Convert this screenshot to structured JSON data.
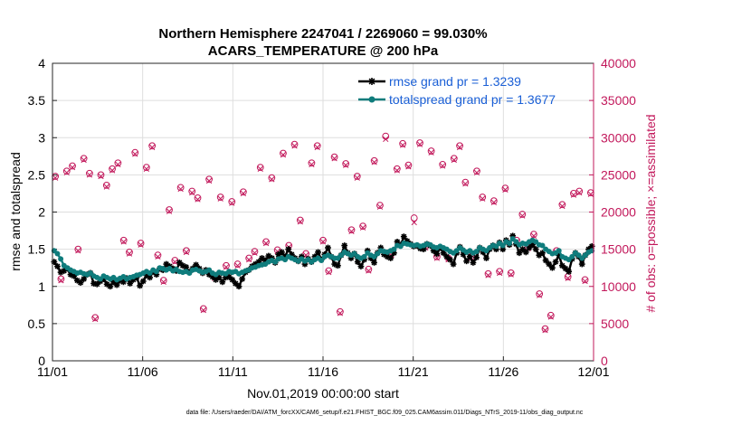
{
  "chart_data": {
    "type": "line",
    "title": "Northern Hemisphere 2247041 / 2269060 = 99.030%",
    "subtitle": "ACARS_TEMPERATURE @ 200 hPa",
    "xlabel": "Nov.01,2019 00:00:00 start",
    "ylabel": "rmse and totalspread",
    "ylabel_right": "# of obs: o=possible; ×=assimilated",
    "xlim": [
      0,
      30
    ],
    "ylim": [
      0,
      4
    ],
    "ylim_right": [
      0,
      40000
    ],
    "x_ticks": [
      0,
      5,
      10,
      15,
      20,
      25,
      30
    ],
    "x_tick_labels": [
      "11/01",
      "11/06",
      "11/11",
      "11/16",
      "11/21",
      "11/26",
      "12/01"
    ],
    "y_tick_labels": [
      "0",
      "0.5",
      "1",
      "1.5",
      "2",
      "2.5",
      "3",
      "3.5",
      "4"
    ],
    "y_right_tick_labels": [
      "0",
      "5000",
      "10000",
      "15000",
      "20000",
      "25000",
      "30000",
      "35000",
      "40000"
    ],
    "legend_position": "top-right",
    "footer": "data file: /Users/raeder/DAI/ATM_forcXX/CAM6_setup/f.e21.FHIST_BGC.f09_025.CAM6assim.011/Diags_NTrS_2019-11/obs_diag_output.nc",
    "colors": {
      "rmse": "#000000",
      "spread": "#0f7c7c",
      "obs": "#c2185b",
      "legend_text": "#1a5fd6"
    },
    "series": [
      {
        "name": "rmse grand pr = 1.3239",
        "axis": "left",
        "marker": "asterisk",
        "values": [
          1.33,
          1.27,
          1.19,
          1.21,
          1.24,
          1.16,
          1.14,
          1.08,
          1.05,
          1.1,
          1.16,
          1.18,
          1.04,
          1.03,
          1.07,
          1.1,
          1.03,
          1.0,
          1.06,
          1.02,
          1.08,
          1.06,
          1.11,
          1.04,
          1.09,
          1.12,
          1.01,
          1.07,
          1.15,
          1.12,
          1.2,
          1.16,
          1.24,
          1.22,
          1.3,
          1.27,
          1.24,
          1.21,
          1.32,
          1.28,
          1.26,
          1.19,
          1.24,
          1.29,
          1.24,
          1.18,
          1.22,
          1.16,
          1.13,
          1.09,
          1.12,
          1.06,
          1.12,
          1.13,
          1.09,
          1.04,
          1.0,
          1.1,
          1.19,
          1.22,
          1.27,
          1.3,
          1.33,
          1.38,
          1.35,
          1.41,
          1.38,
          1.32,
          1.43,
          1.46,
          1.4,
          1.5,
          1.43,
          1.38,
          1.34,
          1.4,
          1.3,
          1.37,
          1.33,
          1.4,
          1.46,
          1.36,
          1.43,
          1.52,
          1.4,
          1.3,
          1.28,
          1.42,
          1.55,
          1.45,
          1.38,
          1.44,
          1.33,
          1.27,
          1.36,
          1.48,
          1.38,
          1.32,
          1.45,
          1.52,
          1.43,
          1.4,
          1.38,
          1.45,
          1.6,
          1.55,
          1.67,
          1.61,
          1.57,
          1.54,
          1.55,
          1.51,
          1.5,
          1.57,
          1.55,
          1.48,
          1.44,
          1.52,
          1.45,
          1.4,
          1.36,
          1.3,
          1.45,
          1.53,
          1.43,
          1.34,
          1.4,
          1.32,
          1.39,
          1.52,
          1.46,
          1.38,
          1.5,
          1.55,
          1.5,
          1.59,
          1.5,
          1.62,
          1.56,
          1.68,
          1.57,
          1.45,
          1.5,
          1.46,
          1.52,
          1.56,
          1.5,
          1.42,
          1.45,
          1.35,
          1.3,
          1.25,
          1.33,
          1.42,
          1.28,
          1.24,
          1.2,
          1.37,
          1.45,
          1.4,
          1.3,
          1.42,
          1.5,
          1.54
        ]
      },
      {
        "name": "totalspread grand pr = 1.3677",
        "axis": "left",
        "marker": "dot",
        "values": [
          1.48,
          1.44,
          1.37,
          1.28,
          1.25,
          1.22,
          1.2,
          1.18,
          1.19,
          1.17,
          1.16,
          1.18,
          1.14,
          1.12,
          1.1,
          1.14,
          1.12,
          1.1,
          1.12,
          1.09,
          1.11,
          1.13,
          1.1,
          1.12,
          1.13,
          1.15,
          1.16,
          1.18,
          1.2,
          1.18,
          1.22,
          1.2,
          1.25,
          1.24,
          1.22,
          1.24,
          1.21,
          1.23,
          1.2,
          1.19,
          1.2,
          1.18,
          1.22,
          1.23,
          1.21,
          1.19,
          1.2,
          1.22,
          1.18,
          1.16,
          1.19,
          1.18,
          1.17,
          1.2,
          1.19,
          1.2,
          1.17,
          1.19,
          1.21,
          1.22,
          1.25,
          1.26,
          1.28,
          1.29,
          1.3,
          1.33,
          1.35,
          1.33,
          1.37,
          1.38,
          1.36,
          1.4,
          1.38,
          1.36,
          1.34,
          1.37,
          1.34,
          1.36,
          1.33,
          1.36,
          1.38,
          1.35,
          1.4,
          1.42,
          1.4,
          1.38,
          1.38,
          1.42,
          1.46,
          1.44,
          1.42,
          1.44,
          1.4,
          1.38,
          1.4,
          1.45,
          1.42,
          1.4,
          1.44,
          1.48,
          1.47,
          1.46,
          1.48,
          1.5,
          1.55,
          1.54,
          1.58,
          1.57,
          1.56,
          1.55,
          1.56,
          1.54,
          1.55,
          1.57,
          1.56,
          1.53,
          1.52,
          1.54,
          1.52,
          1.5,
          1.47,
          1.45,
          1.48,
          1.52,
          1.49,
          1.46,
          1.48,
          1.45,
          1.47,
          1.52,
          1.5,
          1.48,
          1.52,
          1.55,
          1.54,
          1.58,
          1.55,
          1.6,
          1.58,
          1.64,
          1.6,
          1.56,
          1.58,
          1.57,
          1.6,
          1.62,
          1.6,
          1.56,
          1.55,
          1.5,
          1.47,
          1.44,
          1.45,
          1.48,
          1.4,
          1.38,
          1.36,
          1.4,
          1.45,
          1.42,
          1.38,
          1.42,
          1.46,
          1.48
        ]
      },
      {
        "name": "possible",
        "axis": "right",
        "marker": "circle",
        "values": [
          24800,
          11000,
          25500,
          26200,
          15000,
          27200,
          25200,
          5800,
          25000,
          23600,
          25800,
          26600,
          16200,
          14600,
          28000,
          15800,
          26000,
          28900,
          14200,
          10800,
          20300,
          13500,
          23300,
          14800,
          22800,
          21900,
          7000,
          24400,
          11300,
          22000,
          12800,
          21400,
          13000,
          22700,
          13800,
          14700,
          26000,
          16000,
          24600,
          14900,
          27900,
          15500,
          29100,
          18900,
          14400,
          26600,
          28900,
          16200,
          12100,
          27400,
          6600,
          26500,
          17600,
          24800,
          18100,
          12300,
          26900,
          20900,
          30200,
          14400,
          25800,
          29200,
          26300,
          19200,
          29300,
          15400,
          28200,
          14000,
          26400,
          13800,
          27200,
          28900,
          24000,
          14000,
          25500,
          22000,
          11700,
          21500,
          12000,
          23200,
          11800,
          16200,
          19700,
          15300,
          17000,
          9000,
          4300,
          6100,
          14800,
          21000,
          11300,
          22500,
          22800,
          10900,
          22600
        ]
      },
      {
        "name": "assimilated",
        "axis": "right",
        "marker": "x",
        "values": [
          24600,
          10800,
          25300,
          26000,
          14800,
          27000,
          25000,
          5600,
          24800,
          23400,
          25600,
          26400,
          16000,
          14400,
          27800,
          15600,
          25800,
          28700,
          14000,
          10600,
          20100,
          13300,
          23100,
          14600,
          22600,
          21700,
          6800,
          24200,
          11100,
          21800,
          12600,
          21200,
          12800,
          22500,
          13600,
          14500,
          25800,
          15800,
          24400,
          14700,
          27700,
          15300,
          28900,
          18700,
          14200,
          26400,
          28700,
          16000,
          11900,
          27200,
          6400,
          26300,
          17400,
          24600,
          17900,
          12100,
          26700,
          20700,
          29800,
          14200,
          25600,
          29000,
          26100,
          18600,
          29100,
          15200,
          28000,
          13800,
          26200,
          13600,
          27000,
          28700,
          23800,
          13800,
          25300,
          21800,
          11500,
          21300,
          11800,
          23000,
          11600,
          16000,
          19500,
          15100,
          16800,
          8800,
          4100,
          5900,
          14600,
          20800,
          11100,
          22300,
          22600,
          10700,
          22400
        ]
      }
    ]
  }
}
